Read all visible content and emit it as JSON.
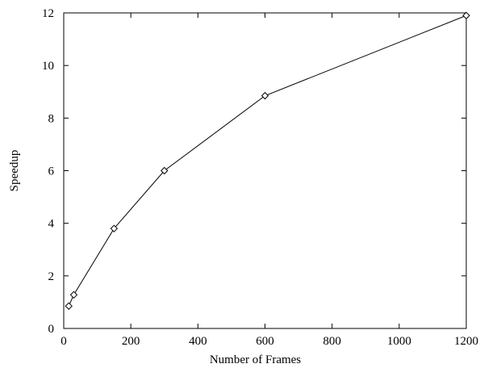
{
  "chart_data": {
    "type": "line",
    "title": "",
    "xlabel": "Number of Frames",
    "ylabel": "Speedup",
    "xlim": [
      0,
      1200
    ],
    "ylim": [
      0,
      12
    ],
    "x_ticks": [
      0,
      200,
      400,
      600,
      800,
      1000,
      1200
    ],
    "y_ticks": [
      0,
      2,
      4,
      6,
      8,
      10,
      12
    ],
    "grid": false,
    "legend": "none",
    "marker": "diamond",
    "line_color": "#000000",
    "series": [
      {
        "x": [
          15,
          30,
          150,
          300,
          600,
          1200
        ],
        "y": [
          0.85,
          1.28,
          3.8,
          6.0,
          8.85,
          11.9
        ]
      }
    ]
  }
}
